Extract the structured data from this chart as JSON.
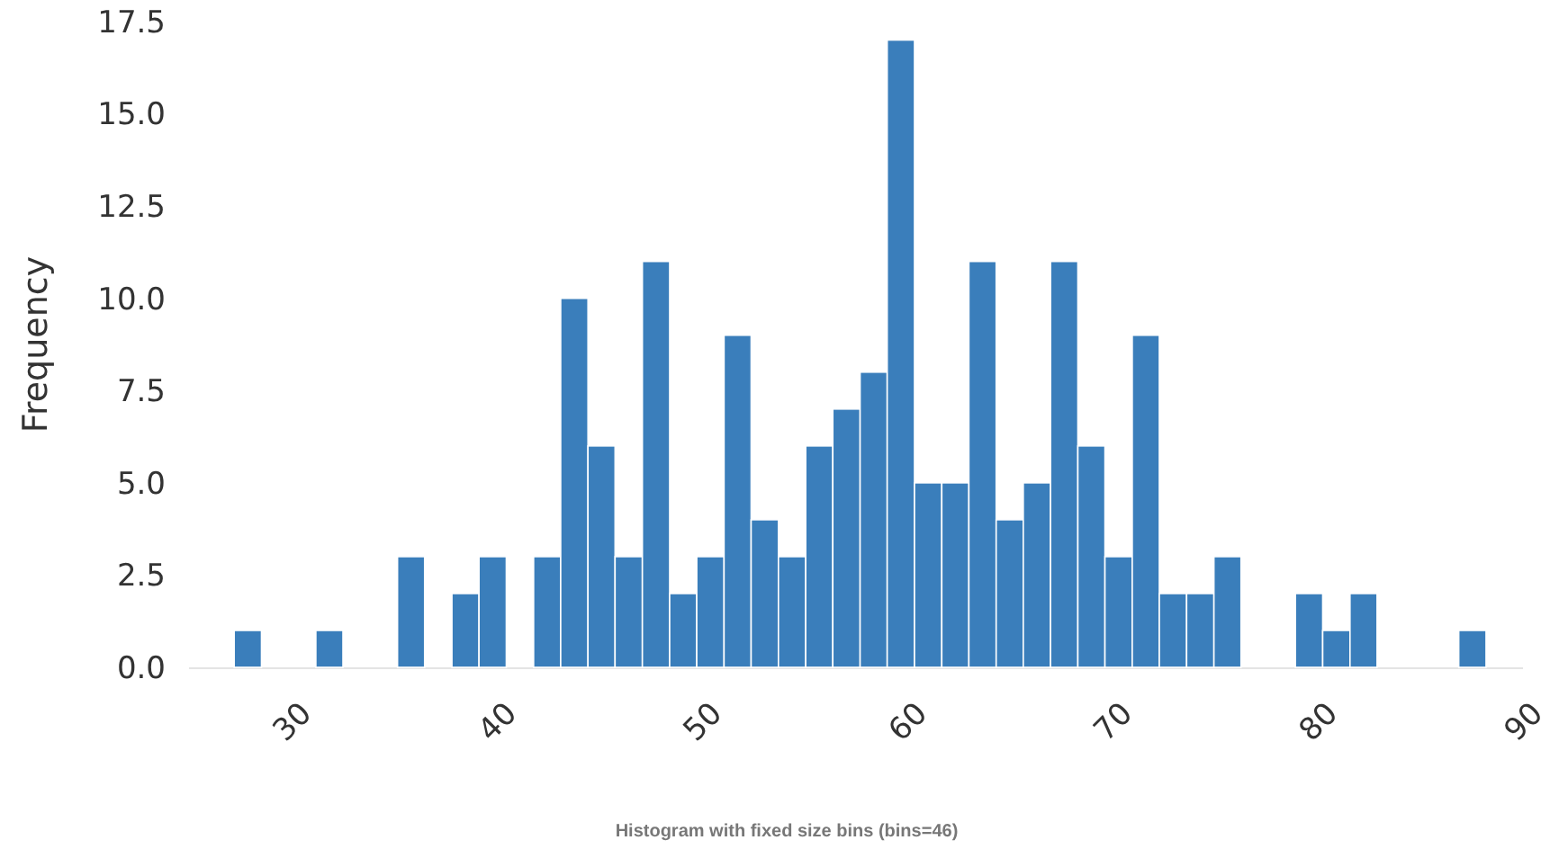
{
  "chart_data": {
    "type": "histogram",
    "title": "Histogram with fixed size bins (bins=46)",
    "ylabel": "Frequency",
    "bins": [
      27.2,
      28.53,
      29.85,
      31.18,
      32.5,
      33.83,
      35.16,
      36.48,
      37.81,
      39.13,
      40.46,
      41.79,
      43.11,
      44.44,
      45.76,
      47.09,
      48.42,
      49.74,
      51.07,
      52.39,
      53.72,
      55.05,
      56.37,
      57.7,
      59.02,
      60.35,
      61.68,
      63.0,
      64.33,
      65.65,
      66.98,
      68.31,
      69.63,
      70.96,
      72.28,
      73.61,
      74.94,
      76.26,
      77.59,
      78.91,
      80.24,
      81.57,
      82.89,
      84.22,
      85.54,
      86.87,
      88.2
    ],
    "values": [
      1,
      0,
      0,
      1,
      0,
      0,
      3,
      0,
      2,
      3,
      0,
      3,
      10,
      6,
      3,
      11,
      2,
      3,
      9,
      4,
      3,
      6,
      7,
      8,
      17,
      5,
      5,
      11,
      4,
      5,
      11,
      6,
      3,
      9,
      2,
      2,
      3,
      0,
      0,
      2,
      1,
      2,
      0,
      0,
      0,
      1
    ],
    "color": "#3a7ebb",
    "xlim": [
      25,
      90
    ],
    "xticks": [
      30,
      40,
      50,
      60,
      70,
      80,
      90
    ],
    "ylim": [
      0,
      17.5
    ],
    "yticks": [
      {
        "value": 0,
        "label": "0.0"
      },
      {
        "value": 2.5,
        "label": "2.5"
      },
      {
        "value": 5,
        "label": "5.0"
      },
      {
        "value": 7.5,
        "label": "7.5"
      },
      {
        "value": 10,
        "label": "10.0"
      },
      {
        "value": 12.5,
        "label": "12.5"
      },
      {
        "value": 15,
        "label": "15.0"
      },
      {
        "value": 17.5,
        "label": "17.5"
      }
    ],
    "grid": false
  }
}
